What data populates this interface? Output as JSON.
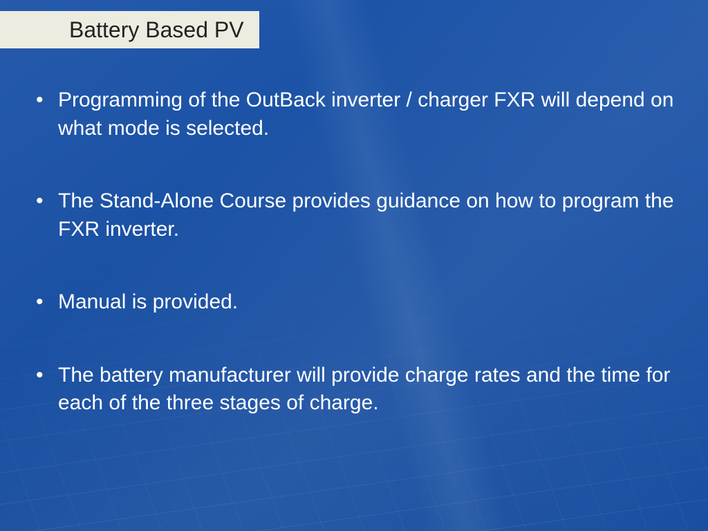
{
  "slide": {
    "title": "Battery Based PV",
    "bullets": [
      "Programming of the OutBack inverter / charger FXR will depend on what mode is selected.",
      "The Stand-Alone Course provides guidance on how to program the FXR inverter.",
      "Manual is provided.",
      "The battery manufacturer will provide charge rates and the time for each of the three stages of charge."
    ],
    "style": {
      "background_color": "#1a4fa0",
      "title_bar_color": "#edece0",
      "title_text_color": "#222222",
      "body_text_color": "#ffffff",
      "title_fontsize": 32,
      "body_fontsize": 30,
      "font_family": "Arial"
    }
  }
}
